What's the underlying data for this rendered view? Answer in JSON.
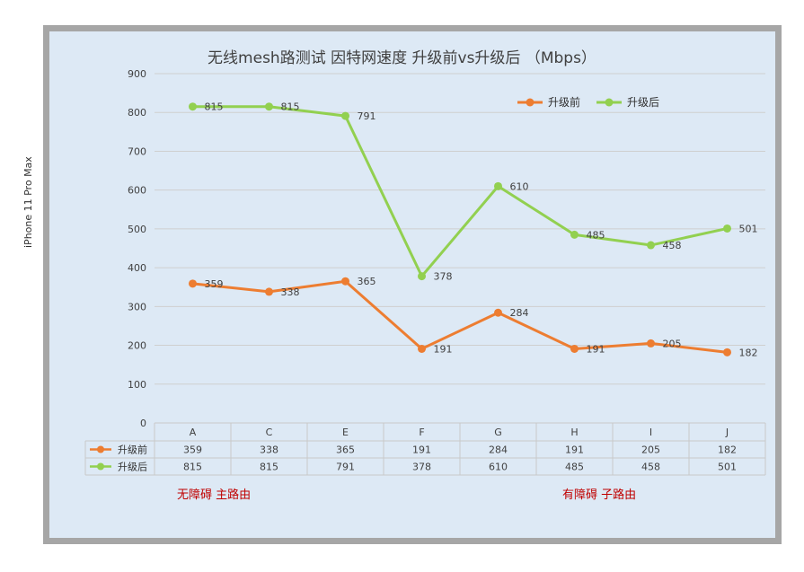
{
  "chart_data": {
    "type": "line",
    "title": "无线mesh路测试 因特网速度 升级前vs升级后 （Mbps）",
    "ylabel": "iPhone 11 Pro Max",
    "xlabel": "",
    "categories": [
      "A",
      "C",
      "E",
      "F",
      "G",
      "H",
      "I",
      "J"
    ],
    "ylim": [
      0,
      900
    ],
    "yticks": [
      0,
      100,
      200,
      300,
      400,
      500,
      600,
      700,
      800,
      900
    ],
    "grid": true,
    "legend": "top-right",
    "data_table": true,
    "series": [
      {
        "name": "升级前",
        "color": "#ed7d31",
        "values": [
          359,
          338,
          365,
          191,
          284,
          191,
          205,
          182
        ]
      },
      {
        "name": "升级后",
        "color": "#92d050",
        "values": [
          815,
          815,
          791,
          378,
          610,
          485,
          458,
          501
        ]
      }
    ]
  },
  "annotations": {
    "left_note": "无障碍  主路由",
    "right_note": "有障碍  子路由"
  }
}
